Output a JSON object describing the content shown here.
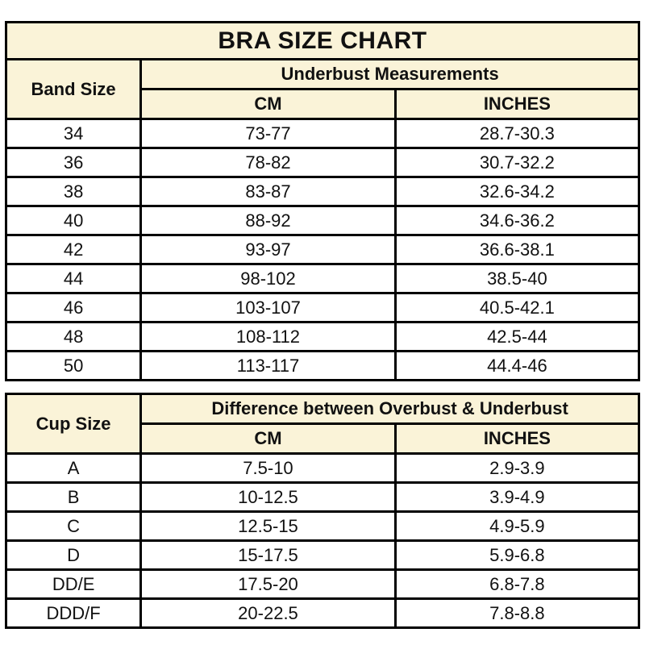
{
  "colors": {
    "page_bg": "#ffffff",
    "header_bg": "#faf3d8",
    "border": "#000000",
    "text": "#111111"
  },
  "band_table": {
    "title": "BRA SIZE CHART",
    "corner_header": "Band Size",
    "group_header": "Underbust Measurements",
    "col_headers": [
      "CM",
      "INCHES"
    ],
    "rows": [
      {
        "size": "34",
        "cm": "73-77",
        "inches": "28.7-30.3"
      },
      {
        "size": "36",
        "cm": "78-82",
        "inches": "30.7-32.2"
      },
      {
        "size": "38",
        "cm": "83-87",
        "inches": "32.6-34.2"
      },
      {
        "size": "40",
        "cm": "88-92",
        "inches": "34.6-36.2"
      },
      {
        "size": "42",
        "cm": "93-97",
        "inches": "36.6-38.1"
      },
      {
        "size": "44",
        "cm": "98-102",
        "inches": "38.5-40"
      },
      {
        "size": "46",
        "cm": "103-107",
        "inches": "40.5-42.1"
      },
      {
        "size": "48",
        "cm": "108-112",
        "inches": "42.5-44"
      },
      {
        "size": "50",
        "cm": "113-117",
        "inches": "44.4-46"
      }
    ]
  },
  "cup_table": {
    "corner_header": "Cup Size",
    "group_header": "Difference between Overbust & Underbust",
    "col_headers": [
      "CM",
      "INCHES"
    ],
    "rows": [
      {
        "size": "A",
        "cm": "7.5-10",
        "inches": "2.9-3.9"
      },
      {
        "size": "B",
        "cm": "10-12.5",
        "inches": "3.9-4.9"
      },
      {
        "size": "C",
        "cm": "12.5-15",
        "inches": "4.9-5.9"
      },
      {
        "size": "D",
        "cm": "15-17.5",
        "inches": "5.9-6.8"
      },
      {
        "size": "DD/E",
        "cm": "17.5-20",
        "inches": "6.8-7.8"
      },
      {
        "size": "DDD/F",
        "cm": "20-22.5",
        "inches": "7.8-8.8"
      }
    ]
  },
  "chart_data": [
    {
      "type": "table",
      "title": "BRA SIZE CHART",
      "columns": [
        "Band Size",
        "Underbust Measurements CM",
        "Underbust Measurements INCHES"
      ],
      "rows": [
        [
          "34",
          "73-77",
          "28.7-30.3"
        ],
        [
          "36",
          "78-82",
          "30.7-32.2"
        ],
        [
          "38",
          "83-87",
          "32.6-34.2"
        ],
        [
          "40",
          "88-92",
          "34.6-36.2"
        ],
        [
          "42",
          "93-97",
          "36.6-38.1"
        ],
        [
          "44",
          "98-102",
          "38.5-40"
        ],
        [
          "46",
          "103-107",
          "40.5-42.1"
        ],
        [
          "48",
          "108-112",
          "42.5-44"
        ],
        [
          "50",
          "113-117",
          "44.4-46"
        ]
      ]
    },
    {
      "type": "table",
      "title": "Cup Size",
      "columns": [
        "Cup Size",
        "Difference between Overbust & Underbust CM",
        "Difference between Overbust & Underbust INCHES"
      ],
      "rows": [
        [
          "A",
          "7.5-10",
          "2.9-3.9"
        ],
        [
          "B",
          "10-12.5",
          "3.9-4.9"
        ],
        [
          "C",
          "12.5-15",
          "4.9-5.9"
        ],
        [
          "D",
          "15-17.5",
          "5.9-6.8"
        ],
        [
          "DD/E",
          "17.5-20",
          "6.8-7.8"
        ],
        [
          "DDD/F",
          "20-22.5",
          "7.8-8.8"
        ]
      ]
    }
  ]
}
